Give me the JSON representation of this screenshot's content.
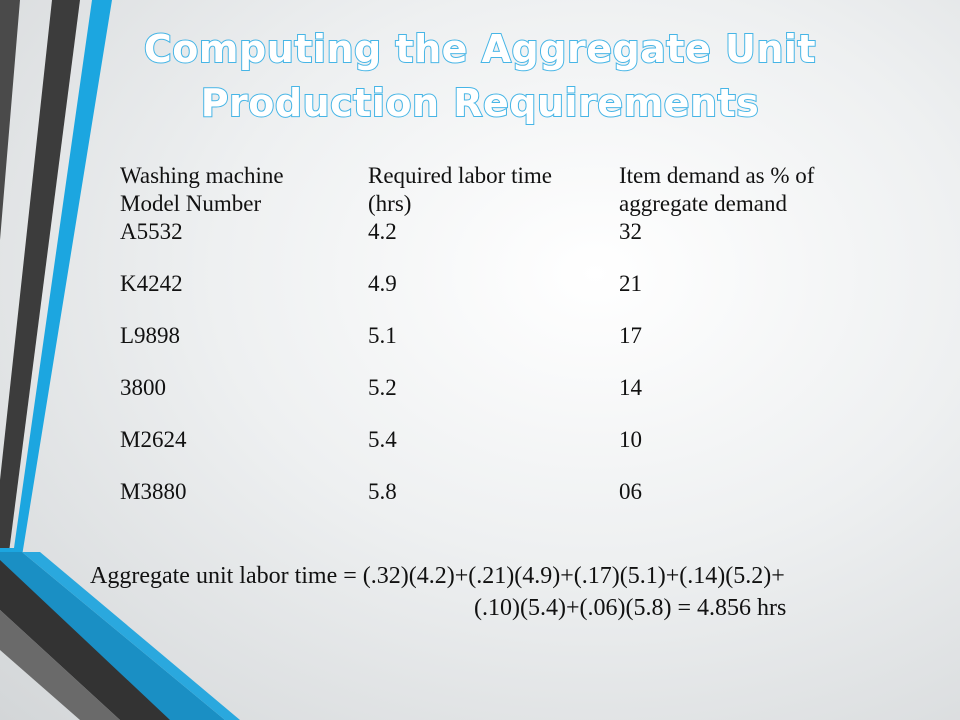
{
  "slide": {
    "title_line1": "Computing the Aggregate Unit",
    "title_line2": "Production Requirements"
  },
  "table": {
    "headers": [
      [
        "Washing machine",
        "Model Number"
      ],
      [
        "Required labor time",
        "(hrs)"
      ],
      [
        "Item demand as % of",
        "aggregate demand"
      ]
    ],
    "rows": [
      [
        "A5532",
        "4.2",
        "32"
      ],
      [
        "K4242",
        "4.9",
        "21"
      ],
      [
        "L9898",
        "5.1",
        "17"
      ],
      [
        "3800",
        "5.2",
        "14"
      ],
      [
        "M2624",
        "5.4",
        "10"
      ],
      [
        "M3880",
        "5.8",
        "06"
      ]
    ]
  },
  "formula": {
    "line1": "Aggregate unit labor time = (.32)(4.2)+(.21)(4.9)+(.17)(5.1)+(.14)(5.2)+",
    "line2": "(.10)(5.4)+(.06)(5.8) = 4.856 hrs"
  },
  "colors": {
    "accent_blue": "#1ca6e0",
    "dark_stripe": "#3a3a3a",
    "title_outline": "#46b5e6"
  }
}
